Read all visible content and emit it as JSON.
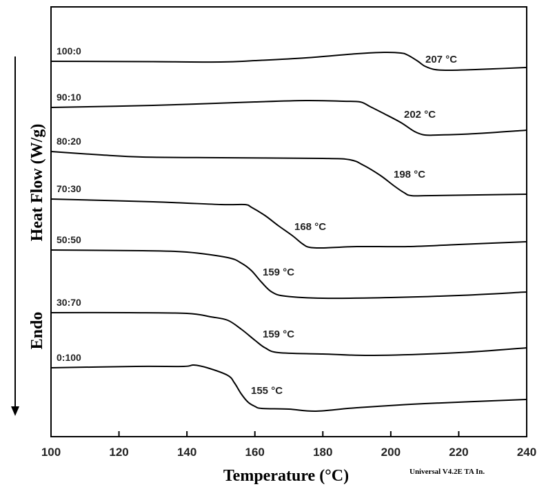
{
  "chart_data": {
    "type": "line",
    "title": "",
    "xlabel": "Temperature  (°C)",
    "ylabel": "Heat Flow (W/g)",
    "ylabel_direction": "Endo",
    "xlim": [
      100,
      240
    ],
    "xticks": [
      100,
      120,
      140,
      160,
      180,
      200,
      220,
      240
    ],
    "grid": false,
    "footer": "Universal V4.2E TA In.",
    "series": [
      {
        "name": "100:0",
        "annotation": "207 °C",
        "points": [
          [
            100,
            89
          ],
          [
            130,
            89.5
          ],
          [
            150,
            90
          ],
          [
            160,
            88
          ],
          [
            175,
            84
          ],
          [
            190,
            78
          ],
          [
            198,
            76
          ],
          [
            203,
            77
          ],
          [
            205,
            80
          ],
          [
            208,
            89
          ],
          [
            210,
            96
          ],
          [
            213,
            101
          ],
          [
            218,
            102
          ],
          [
            230,
            100
          ],
          [
            240,
            98
          ]
        ]
      },
      {
        "name": "90:10",
        "annotation": "202 °C",
        "points": [
          [
            100,
            156
          ],
          [
            130,
            153
          ],
          [
            160,
            148
          ],
          [
            175,
            146
          ],
          [
            186,
            147
          ],
          [
            191,
            148
          ],
          [
            194,
            155
          ],
          [
            198,
            165
          ],
          [
            203,
            178
          ],
          [
            207,
            191
          ],
          [
            210,
            196
          ],
          [
            214,
            196
          ],
          [
            225,
            194
          ],
          [
            240,
            189
          ]
        ]
      },
      {
        "name": "80:20",
        "annotation": "198 °C",
        "points": [
          [
            100,
            220
          ],
          [
            115,
            225
          ],
          [
            127,
            228
          ],
          [
            150,
            229
          ],
          [
            180,
            230
          ],
          [
            188,
            232
          ],
          [
            192,
            240
          ],
          [
            197,
            255
          ],
          [
            201,
            270
          ],
          [
            204,
            280
          ],
          [
            206,
            284
          ],
          [
            212,
            284
          ],
          [
            240,
            282
          ]
        ]
      },
      {
        "name": "70:30",
        "annotation": "168 °C",
        "points": [
          [
            100,
            289
          ],
          [
            130,
            293
          ],
          [
            150,
            297
          ],
          [
            157,
            297
          ],
          [
            159,
            301
          ],
          [
            163,
            313
          ],
          [
            167,
            328
          ],
          [
            171,
            342
          ],
          [
            174,
            354
          ],
          [
            176,
            359
          ],
          [
            180,
            360
          ],
          [
            190,
            358
          ],
          [
            205,
            358
          ],
          [
            220,
            355
          ],
          [
            240,
            351
          ]
        ]
      },
      {
        "name": "50:50",
        "annotation": "159 °C",
        "points": [
          [
            100,
            363
          ],
          [
            127,
            364
          ],
          [
            140,
            366
          ],
          [
            152,
            374
          ],
          [
            156,
            382
          ],
          [
            159,
            393
          ],
          [
            162,
            410
          ],
          [
            165,
            424
          ],
          [
            169,
            430
          ],
          [
            180,
            433
          ],
          [
            200,
            432
          ],
          [
            220,
            429
          ],
          [
            240,
            424
          ]
        ]
      },
      {
        "name": "30:70",
        "annotation": "159 °C",
        "points": [
          [
            100,
            454
          ],
          [
            123,
            454
          ],
          [
            140,
            455
          ],
          [
            147,
            460
          ],
          [
            152,
            465
          ],
          [
            156,
            478
          ],
          [
            160,
            494
          ],
          [
            163,
            505
          ],
          [
            167,
            512
          ],
          [
            180,
            514
          ],
          [
            195,
            516
          ],
          [
            220,
            512
          ],
          [
            240,
            505
          ]
        ]
      },
      {
        "name": "0:100",
        "annotation": "155 °C",
        "points": [
          [
            100,
            534
          ],
          [
            125,
            532
          ],
          [
            139,
            532
          ],
          [
            142,
            530
          ],
          [
            146,
            534
          ],
          [
            152,
            545
          ],
          [
            154,
            556
          ],
          [
            156,
            572
          ],
          [
            158,
            584
          ],
          [
            160,
            590
          ],
          [
            162,
            593
          ],
          [
            170,
            594
          ],
          [
            178,
            597
          ],
          [
            190,
            592
          ],
          [
            210,
            586
          ],
          [
            240,
            580
          ]
        ]
      }
    ]
  }
}
